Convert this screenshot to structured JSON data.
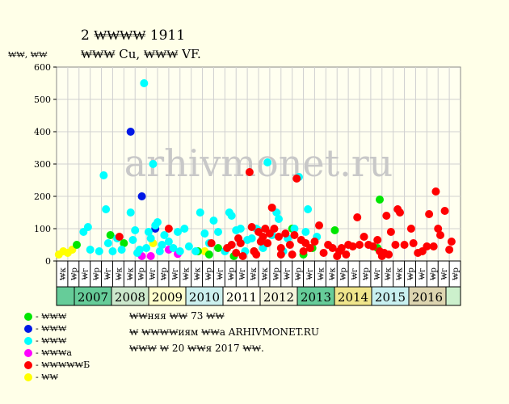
{
  "title": "2 ₩₩₩₩ 1911",
  "subtitle": "₩₩₩ Cu, ₩₩₩ VF.",
  "y_unit_label": "₩₩, ₩₩",
  "watermark": "arhivmonet.ru",
  "notes": [
    "₩₩няя ₩₩ 73 ₩₩",
    "₩ ₩₩₩₩иям ₩₩а ARHIVMONET.RU",
    "₩₩₩ ₩ 20 ₩₩я 2017 ₩₩."
  ],
  "legend": [
    {
      "label": "- ₩₩₩",
      "color": "#00e600"
    },
    {
      "label": "- ₩₩₩",
      "color": "#0018e6"
    },
    {
      "label": "- ₩₩₩",
      "color": "#00ffff"
    },
    {
      "label": "- ₩₩₩а",
      "color": "#ff00ff"
    },
    {
      "label": "- ₩₩₩₩₩Б",
      "color": "#ff0000"
    },
    {
      "label": "- ₩₩",
      "color": "#ffff00"
    }
  ],
  "chart_data": {
    "type": "scatter",
    "ylim": [
      0,
      600
    ],
    "yticks": [
      0,
      100,
      200,
      300,
      400,
      500,
      600
    ],
    "grid": true,
    "half_year_labels": [
      "₩к",
      "₩р",
      "₩г",
      "₩р",
      "₩г",
      "₩к",
      "₩к",
      "₩р",
      "₩г",
      "₩р",
      "₩г",
      "₩к",
      "₩к",
      "₩р",
      "₩г",
      "₩р",
      "₩г",
      "₩к",
      "₩к",
      "₩р",
      "₩г",
      "₩р",
      "₩г",
      "₩к",
      "₩к",
      "₩р",
      "₩г",
      "₩р",
      "₩г",
      "₩к",
      "₩к",
      "₩р",
      "₩г",
      "₩р",
      "₩г",
      "₩р"
    ],
    "years": [
      {
        "label": "2007",
        "color": "#66cc99"
      },
      {
        "label": "2008",
        "color": "#cce8cc"
      },
      {
        "label": "2009",
        "color": "#ffffcc"
      },
      {
        "label": "2010",
        "color": "#ccf0ee"
      },
      {
        "label": "2011",
        "color": "#ffffee"
      },
      {
        "label": "2012",
        "color": "#f5f5dc"
      },
      {
        "label": "2013",
        "color": "#66cc99"
      },
      {
        "label": "2014",
        "color": "#f0e68c"
      },
      {
        "label": "2015",
        "color": "#c8f0f0"
      },
      {
        "label": "2016",
        "color": "#ddd5b0"
      }
    ],
    "series": [
      {
        "color": "#ffff00",
        "points": [
          [
            0.1,
            20
          ],
          [
            0.3,
            30
          ],
          [
            0.5,
            25
          ],
          [
            0.7,
            35
          ],
          [
            4.3,
            55
          ],
          [
            6.6,
            30
          ]
        ]
      },
      {
        "color": "#00e600",
        "points": [
          [
            0.9,
            50
          ],
          [
            2.4,
            80
          ],
          [
            3.0,
            55
          ],
          [
            6.3,
            30
          ],
          [
            6.8,
            20
          ],
          [
            7.2,
            40
          ],
          [
            7.9,
            15
          ],
          [
            8.8,
            30
          ],
          [
            10.5,
            100
          ],
          [
            11.0,
            20
          ],
          [
            11.4,
            40
          ],
          [
            12.4,
            95
          ],
          [
            14.4,
            190
          ],
          [
            14.3,
            40
          ]
        ]
      },
      {
        "color": "#0018e6",
        "points": [
          [
            3.3,
            400
          ],
          [
            3.8,
            200
          ],
          [
            4.4,
            100
          ]
        ]
      },
      {
        "color": "#ff00ff",
        "points": [
          [
            3.8,
            15
          ],
          [
            4.2,
            15
          ],
          [
            5.0,
            35
          ],
          [
            5.4,
            22
          ]
        ]
      },
      {
        "color": "#00ffff",
        "points": [
          [
            1.2,
            90
          ],
          [
            1.4,
            105
          ],
          [
            1.5,
            35
          ],
          [
            1.9,
            30
          ],
          [
            2.1,
            265
          ],
          [
            2.2,
            160
          ],
          [
            2.3,
            55
          ],
          [
            2.5,
            30
          ],
          [
            2.7,
            70
          ],
          [
            2.9,
            35
          ],
          [
            3.3,
            150
          ],
          [
            3.4,
            65
          ],
          [
            3.5,
            95
          ],
          [
            3.6,
            25
          ],
          [
            3.7,
            35
          ],
          [
            3.9,
            550
          ],
          [
            4.0,
            40
          ],
          [
            4.1,
            90
          ],
          [
            4.2,
            70
          ],
          [
            4.3,
            300
          ],
          [
            4.4,
            110
          ],
          [
            4.5,
            120
          ],
          [
            4.6,
            30
          ],
          [
            4.7,
            50
          ],
          [
            4.8,
            80
          ],
          [
            5.0,
            60
          ],
          [
            5.2,
            40
          ],
          [
            5.4,
            90
          ],
          [
            5.5,
            30
          ],
          [
            5.7,
            100
          ],
          [
            5.9,
            45
          ],
          [
            6.2,
            30
          ],
          [
            6.4,
            150
          ],
          [
            6.6,
            85
          ],
          [
            6.8,
            55
          ],
          [
            7.0,
            125
          ],
          [
            7.2,
            90
          ],
          [
            7.5,
            30
          ],
          [
            7.7,
            150
          ],
          [
            7.8,
            140
          ],
          [
            8.0,
            95
          ],
          [
            8.2,
            100
          ],
          [
            8.4,
            30
          ],
          [
            8.5,
            65
          ],
          [
            8.7,
            70
          ],
          [
            8.9,
            100
          ],
          [
            9.0,
            95
          ],
          [
            9.2,
            40
          ],
          [
            9.4,
            305
          ],
          [
            9.6,
            80
          ],
          [
            9.8,
            150
          ],
          [
            9.9,
            130
          ],
          [
            10.1,
            30
          ],
          [
            10.3,
            70
          ],
          [
            10.6,
            100
          ],
          [
            10.8,
            260
          ],
          [
            11.1,
            90
          ],
          [
            11.2,
            160
          ],
          [
            11.6,
            75
          ]
        ]
      },
      {
        "color": "#ff0000",
        "points": [
          [
            2.8,
            75
          ],
          [
            5.0,
            100
          ],
          [
            6.9,
            55
          ],
          [
            7.6,
            40
          ],
          [
            7.8,
            50
          ],
          [
            8.0,
            25
          ],
          [
            8.1,
            70
          ],
          [
            8.2,
            55
          ],
          [
            8.3,
            15
          ],
          [
            8.6,
            275
          ],
          [
            8.7,
            105
          ],
          [
            8.8,
            30
          ],
          [
            8.9,
            20
          ],
          [
            9.0,
            90
          ],
          [
            9.1,
            60
          ],
          [
            9.2,
            75
          ],
          [
            9.3,
            100
          ],
          [
            9.4,
            55
          ],
          [
            9.5,
            85
          ],
          [
            9.6,
            165
          ],
          [
            9.7,
            100
          ],
          [
            9.9,
            75
          ],
          [
            10.0,
            40
          ],
          [
            10.0,
            20
          ],
          [
            10.2,
            85
          ],
          [
            10.4,
            50
          ],
          [
            10.5,
            20
          ],
          [
            10.6,
            80
          ],
          [
            10.7,
            255
          ],
          [
            10.9,
            65
          ],
          [
            11.0,
            30
          ],
          [
            11.1,
            55
          ],
          [
            11.3,
            40
          ],
          [
            11.5,
            60
          ],
          [
            11.7,
            110
          ],
          [
            11.9,
            25
          ],
          [
            12.1,
            50
          ],
          [
            12.3,
            40
          ],
          [
            12.5,
            15
          ],
          [
            12.6,
            30
          ],
          [
            12.7,
            40
          ],
          [
            12.9,
            20
          ],
          [
            13.0,
            50
          ],
          [
            13.2,
            45
          ],
          [
            13.4,
            135
          ],
          [
            13.5,
            50
          ],
          [
            13.7,
            75
          ],
          [
            13.9,
            50
          ],
          [
            14.1,
            45
          ],
          [
            14.3,
            65
          ],
          [
            14.4,
            30
          ],
          [
            14.5,
            15
          ],
          [
            14.6,
            25
          ],
          [
            14.7,
            140
          ],
          [
            14.8,
            20
          ],
          [
            14.9,
            90
          ],
          [
            15.1,
            50
          ],
          [
            15.2,
            160
          ],
          [
            15.3,
            150
          ],
          [
            15.5,
            50
          ],
          [
            15.8,
            100
          ],
          [
            15.9,
            55
          ],
          [
            16.1,
            25
          ],
          [
            16.3,
            30
          ],
          [
            16.5,
            45
          ],
          [
            16.6,
            145
          ],
          [
            16.8,
            45
          ],
          [
            16.9,
            215
          ],
          [
            17.0,
            100
          ],
          [
            17.1,
            80
          ],
          [
            17.3,
            155
          ],
          [
            17.5,
            35
          ],
          [
            17.6,
            60
          ]
        ]
      }
    ]
  }
}
